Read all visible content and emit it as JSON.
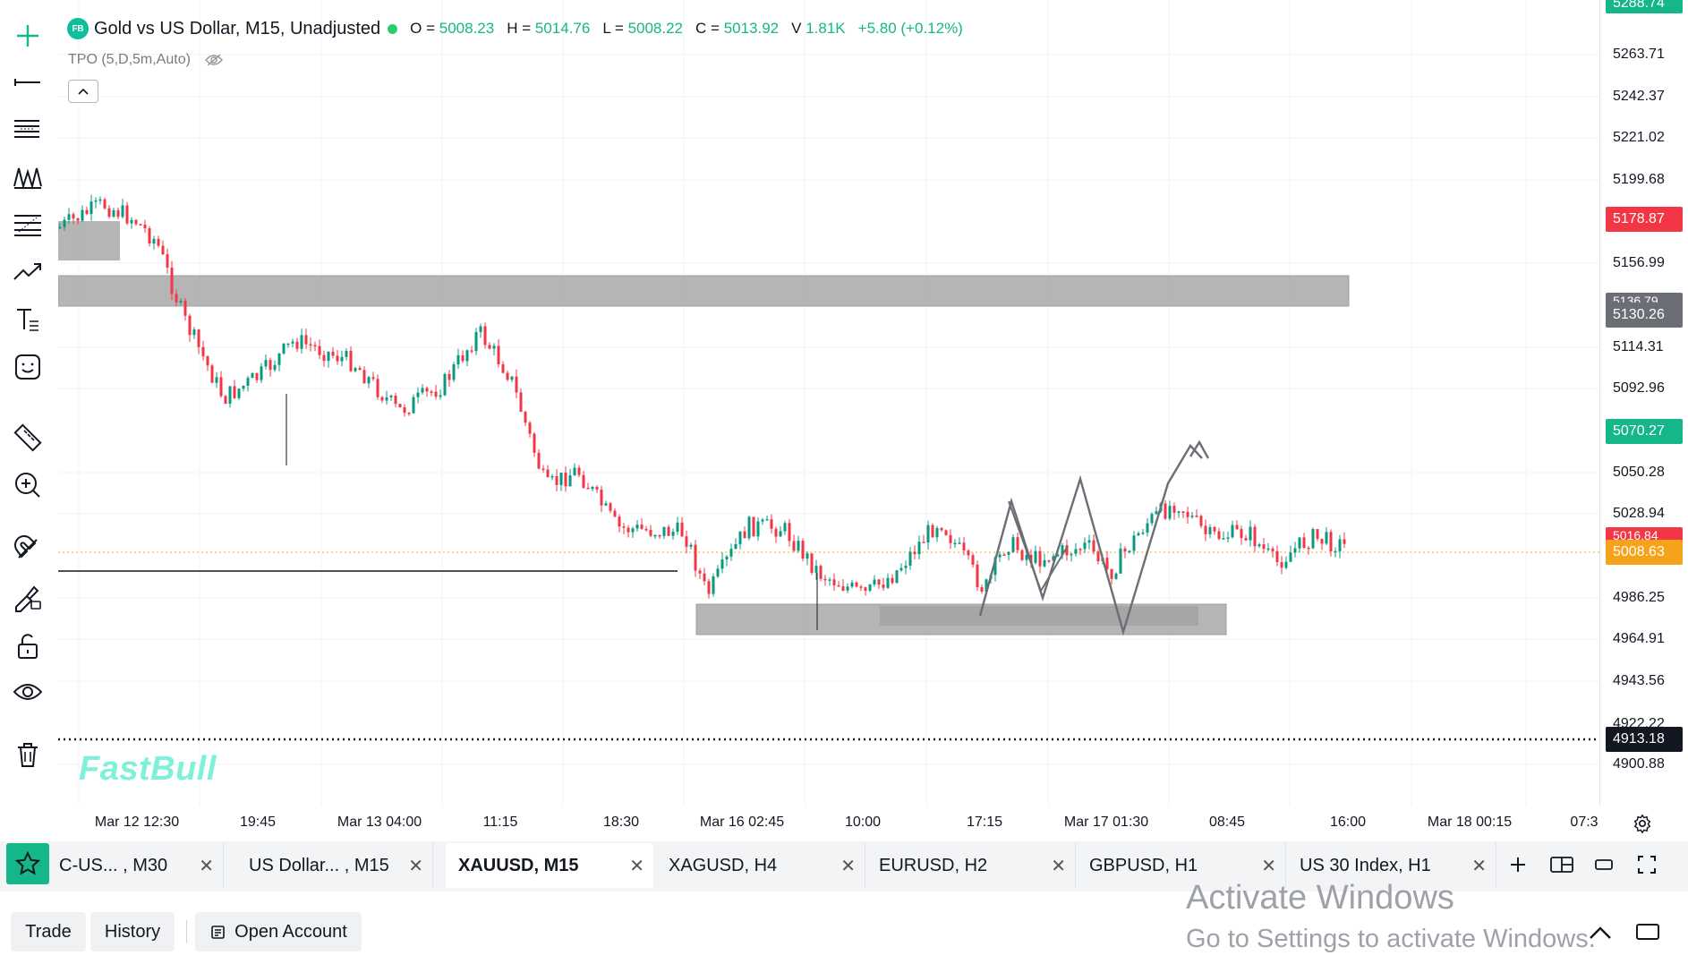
{
  "legend": {
    "badge": "FB",
    "title": "Gold vs US Dollar, M15, Unadjusted",
    "open_label": "O =",
    "open": "5008.23",
    "high_label": "H =",
    "high": "5014.76",
    "low_label": "L =",
    "low": "5008.22",
    "close_label": "C =",
    "close": "5013.92",
    "volume_label": "V",
    "volume": "1.81K",
    "change": "+5.80 (+0.12%)"
  },
  "indicator": {
    "label": "TPO (5,D,5m,Auto)"
  },
  "watermark": "FastBull",
  "price_axis": {
    "ticks": [
      "5263.71",
      "5242.37",
      "5221.02",
      "5199.68",
      "5156.99",
      "5114.31",
      "5092.96",
      "5050.28",
      "5028.94",
      "4986.25",
      "4964.91",
      "4943.56",
      "4900.88"
    ],
    "partial_top": "5288.74",
    "partial_5136": "5136.79",
    "partial_5016": "5016.84",
    "partial_4922": "4922.22",
    "labels": {
      "red": "5178.87",
      "gray": "5130.26",
      "green": "5070.27",
      "orange": "5008.63",
      "black": "4913.18"
    },
    "colors": {
      "red": "#f23645",
      "gray": "#6b6e75",
      "green": "#15b689",
      "orange": "#f7a21b",
      "black": "#131722",
      "top_green": "#15b689"
    }
  },
  "time_axis": {
    "ticks": [
      "Mar 12 12:30",
      "19:45",
      "Mar 13 04:00",
      "11:15",
      "18:30",
      "Mar 16 02:45",
      "10:00",
      "17:15",
      "Mar 17 01:30",
      "08:45",
      "16:00",
      "Mar 18 00:15",
      "07:3"
    ]
  },
  "tabs": [
    {
      "label": "C-US...  , M30"
    },
    {
      "label": "US Dollar... , M15"
    },
    {
      "label": "XAUUSD, M15"
    },
    {
      "label": "XAGUSD, H4"
    },
    {
      "label": "EURUSD, H2"
    },
    {
      "label": "GBPUSD, H1"
    },
    {
      "label": "US 30 Index, H1"
    }
  ],
  "tab_close": "✕",
  "bottom": {
    "trade": "Trade",
    "history": "History",
    "open_account": "Open Account"
  },
  "activate": {
    "title": "Activate Windows",
    "subtitle": "Go to Settings to activate Windows."
  },
  "chart_colors": {
    "up": "#089981",
    "down": "#f23645",
    "zone": "#adadad"
  }
}
